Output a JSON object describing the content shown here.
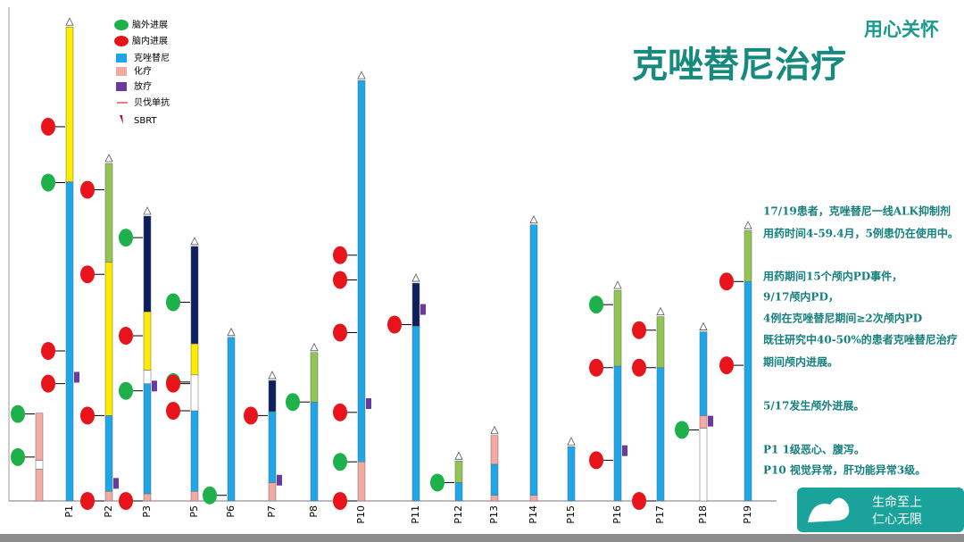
{
  "header": {
    "slogan": "用心关怀",
    "title": "克唑替尼治疗"
  },
  "chart_data": {
    "type": "swimmer",
    "ylim": [
      0,
      62
    ],
    "legend": [
      {
        "label": "脑外进展",
        "color": "#1db04b"
      },
      {
        "label": "脑内进展",
        "color": "#e8141c"
      },
      {
        "label": "克唑替尼",
        "color": "#1ea7e8"
      },
      {
        "label": "化疗",
        "color": "#f2aaa3"
      },
      {
        "label": "放疗",
        "color": "#6a3aa0"
      },
      {
        "label": "贝伐单抗",
        "color": "#f08080"
      },
      {
        "label": "SBRT",
        "color": "#b0103a"
      }
    ],
    "bars": [
      {
        "category": null,
        "segments": [
          {
            "color": "#f2aaa3",
            "value": 4.0
          },
          {
            "color": "#ffffff",
            "value": 1.1
          },
          {
            "color": "#f2aaa3",
            "value": 5.9
          }
        ],
        "extracranial": [
          10.9,
          5.5
        ],
        "intracranial": [],
        "radiotherapy": []
      },
      {
        "category": "P1",
        "segments": [
          {
            "color": "#1ea7e8",
            "value": 40.0
          },
          {
            "color": "#ffeb00",
            "value": 19.4
          }
        ],
        "extracranial": [
          39.9
        ],
        "intracranial": [
          46.9,
          18.8,
          14.7
        ],
        "radiotherapy": [
          15.5
        ]
      },
      {
        "category": "P2",
        "segments": [
          {
            "color": "#f2aaa3",
            "value": 1.2
          },
          {
            "color": "#1ea7e8",
            "value": 9.5
          },
          {
            "color": "#ffeb00",
            "value": 19.2
          },
          {
            "color": "#92c353",
            "value": 12.4
          }
        ],
        "extracranial": [],
        "intracranial": [
          39.0,
          28.4,
          10.7,
          0
        ],
        "radiotherapy": [
          2.2
        ]
      },
      {
        "category": "P3",
        "segments": [
          {
            "color": "#f2aaa3",
            "value": 0.9
          },
          {
            "color": "#1ea7e8",
            "value": 13.8
          },
          {
            "color": "#ffffff",
            "value": 1.7
          },
          {
            "color": "#ffeb00",
            "value": 7.3
          },
          {
            "color": "#0d1f5c",
            "value": 12.0
          }
        ],
        "extracranial": [
          33.0,
          13.8
        ],
        "intracranial": [
          20.7,
          0
        ],
        "radiotherapy": [
          14.4
        ]
      },
      {
        "category": "P5",
        "segments": [
          {
            "color": "#f2aaa3",
            "value": 1.2
          },
          {
            "color": "#1ea7e8",
            "value": 10.1
          },
          {
            "color": "#ffffff",
            "value": 4.5
          },
          {
            "color": "#ffeb00",
            "value": 3.9
          },
          {
            "color": "#0d1f5c",
            "value": 12.2
          }
        ],
        "extracranial": [
          24.9,
          14.9
        ],
        "intracranial": [
          14.7,
          11.3
        ],
        "radiotherapy": []
      },
      {
        "category": "P6",
        "segments": [
          {
            "color": "#1ea7e8",
            "value": 20.5
          }
        ],
        "extracranial": [
          0.7
        ],
        "intracranial": [],
        "radiotherapy": []
      },
      {
        "category": "P7",
        "segments": [
          {
            "color": "#f2aaa3",
            "value": 2.3
          },
          {
            "color": "#1ea7e8",
            "value": 8.9
          },
          {
            "color": "#0d1f5c",
            "value": 3.9
          }
        ],
        "extracranial": [],
        "intracranial": [
          10.7
        ],
        "radiotherapy": [
          2.6
        ]
      },
      {
        "category": "P8",
        "segments": [
          {
            "color": "#1ea7e8",
            "value": 12.4
          },
          {
            "color": "#92c353",
            "value": 6.2
          }
        ],
        "extracranial": [
          12.4
        ],
        "intracranial": [],
        "radiotherapy": []
      },
      {
        "category": "P10",
        "segments": [
          {
            "color": "#f2aaa3",
            "value": 4.9
          },
          {
            "color": "#1ea7e8",
            "value": 47.8
          }
        ],
        "extracranial": [
          4.9
        ],
        "intracranial": [
          30.8,
          27.7,
          21.1,
          11.1,
          0
        ],
        "radiotherapy": [
          12.2
        ]
      },
      {
        "category": "P11",
        "segments": [
          {
            "color": "#1ea7e8",
            "value": 21.9
          },
          {
            "color": "#0d1f5c",
            "value": 5.4
          }
        ],
        "extracranial": [],
        "intracranial": [
          22.1
        ],
        "radiotherapy": [
          24.0
        ]
      },
      {
        "category": "P12",
        "segments": [
          {
            "color": "#1ea7e8",
            "value": 2.3
          },
          {
            "color": "#92c353",
            "value": 2.7
          }
        ],
        "extracranial": [
          2.3
        ],
        "intracranial": [],
        "radiotherapy": []
      },
      {
        "category": "P13",
        "segments": [
          {
            "color": "#f2aaa3",
            "value": 0.7
          },
          {
            "color": "#1ea7e8",
            "value": 3.9
          },
          {
            "color": "#f2aaa3",
            "value": 3.6
          }
        ],
        "extracranial": [],
        "intracranial": [],
        "radiotherapy": []
      },
      {
        "category": "P14",
        "segments": [
          {
            "color": "#f2aaa3",
            "value": 0.7
          },
          {
            "color": "#1ea7e8",
            "value": 33.9
          }
        ],
        "extracranial": [],
        "intracranial": [],
        "radiotherapy": []
      },
      {
        "category": "P15",
        "segments": [
          {
            "color": "#1ea7e8",
            "value": 6.8
          }
        ],
        "extracranial": [],
        "intracranial": [],
        "radiotherapy": []
      },
      {
        "category": "P16",
        "segments": [
          {
            "color": "#1ea7e8",
            "value": 16.9
          },
          {
            "color": "#92c353",
            "value": 9.5
          }
        ],
        "extracranial": [
          24.6
        ],
        "intracranial": [
          16.7,
          5.1
        ],
        "radiotherapy": [
          6.3
        ]
      },
      {
        "category": "P17",
        "segments": [
          {
            "color": "#1ea7e8",
            "value": 16.7
          },
          {
            "color": "#92c353",
            "value": 6.4
          }
        ],
        "extracranial": [],
        "intracranial": [
          21.4,
          16.7,
          0
        ],
        "radiotherapy": []
      },
      {
        "category": "P18",
        "segments": [
          {
            "color": "#ffffff",
            "value": 9.1
          },
          {
            "color": "#f2aaa3",
            "value": 1.6
          },
          {
            "color": "#1ea7e8",
            "value": 10.5
          }
        ],
        "extracranial": [
          8.9
        ],
        "intracranial": [],
        "radiotherapy": [
          10.0
        ]
      },
      {
        "category": "P19",
        "segments": [
          {
            "color": "#1ea7e8",
            "value": 27.5
          },
          {
            "color": "#92c353",
            "value": 6.4
          }
        ],
        "extracranial": [],
        "intracranial": [
          27.5,
          17.0
        ],
        "radiotherapy": []
      }
    ]
  },
  "notes": [
    "17/19患者，克唑替尼一线ALK抑制剂",
    "用药时间4-59.4月，5例患仍在使用中。",
    "用药期间15个颅内PD事件，",
    "9/17颅内PD，",
    "4例在克唑替尼期间≥2次颅内PD",
    "既往研究中40-50%的患者克唑替尼治疗",
    "期间颅内进展。",
    "5/17发生颅外进展。",
    "P1 1级恶心、腹泻。",
    "P10 视觉异常，肝功能异常3级。"
  ],
  "logo": [
    "生命至上",
    "仁心无限"
  ]
}
